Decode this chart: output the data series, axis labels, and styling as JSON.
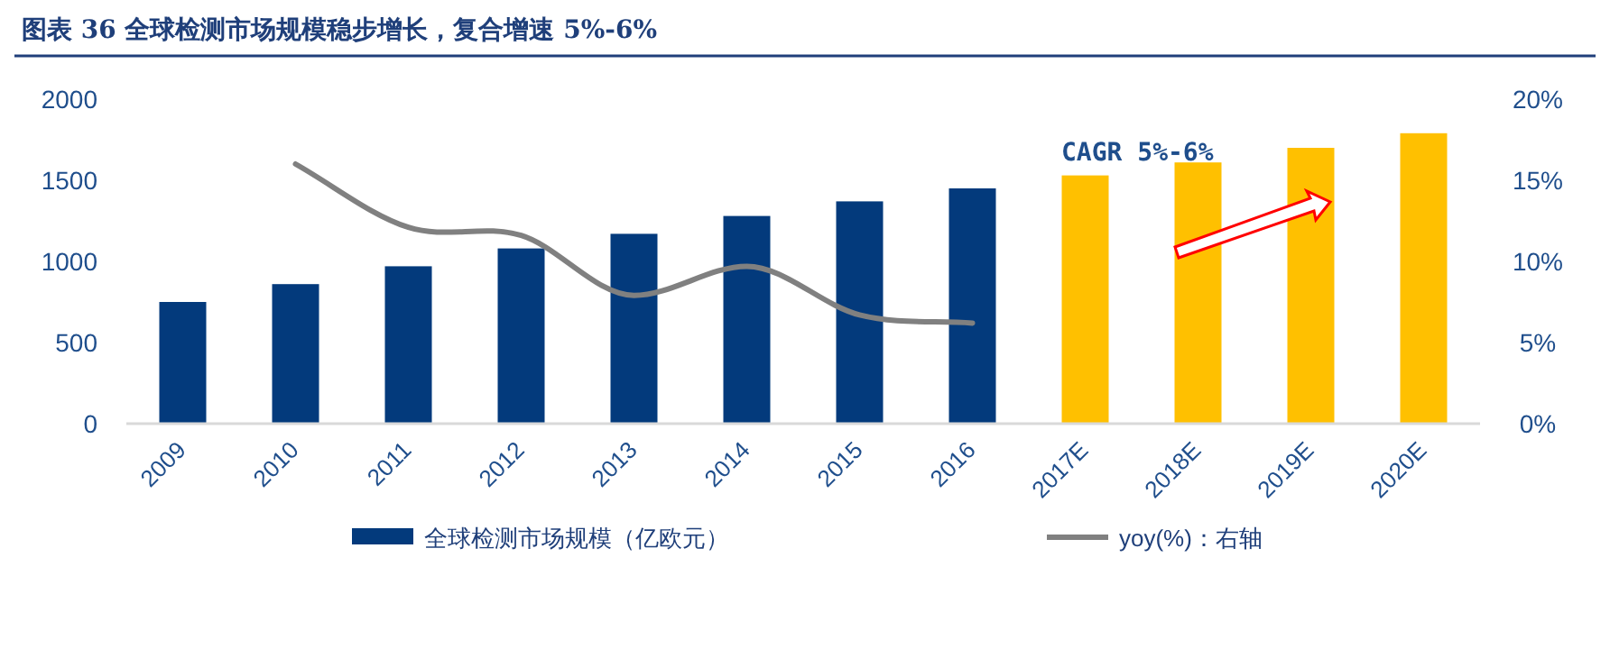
{
  "chart_data": {
    "type": "bar",
    "title": "图表 36  全球检测市场规模稳步增长，复合增速 5%-6%",
    "categories": [
      "2009",
      "2010",
      "2011",
      "2012",
      "2013",
      "2014",
      "2015",
      "2016",
      "2017E",
      "2018E",
      "2019E",
      "2020E"
    ],
    "ylim": [
      0,
      2000
    ],
    "yticks": [
      0,
      500,
      1000,
      1500,
      2000
    ],
    "y2lim": [
      0,
      20
    ],
    "y2ticks": [
      {
        "value": 0,
        "label": "0%"
      },
      {
        "value": 5,
        "label": "5%"
      },
      {
        "value": 10,
        "label": "10%"
      },
      {
        "value": 15,
        "label": "15%"
      },
      {
        "value": 20,
        "label": "20%"
      }
    ],
    "series": [
      {
        "name": "全球检测市场规模（亿欧元）",
        "color": "#033a7c",
        "colors": [
          "#033a7c",
          "#033a7c",
          "#033a7c",
          "#033a7c",
          "#033a7c",
          "#033a7c",
          "#033a7c",
          "#033a7c",
          "#ffc000",
          "#ffc000",
          "#ffc000",
          "#ffc000"
        ],
        "values": [
          750,
          860,
          970,
          1080,
          1170,
          1280,
          1370,
          1450,
          1530,
          1610,
          1700,
          1790
        ]
      },
      {
        "name": "yoy(%)：右轴",
        "type": "line",
        "axis": "y2",
        "color": "#808080",
        "values": [
          null,
          16.0,
          12.1,
          11.6,
          7.9,
          9.7,
          6.7,
          6.2,
          null,
          null,
          null,
          null
        ]
      }
    ],
    "annotations": [
      "CAGR 5%-6%"
    ],
    "legend": "bottom",
    "grid": false
  }
}
